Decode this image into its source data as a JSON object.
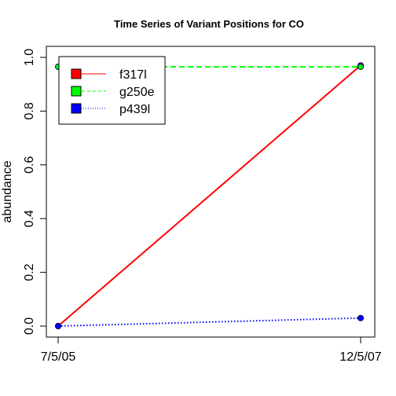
{
  "chart_data": {
    "type": "line",
    "title": "Time Series of Variant Positions for CO",
    "xlabel": "",
    "ylabel": "abundance",
    "categories": [
      "7/5/05",
      "12/5/07"
    ],
    "ylim": [
      0,
      1.0
    ],
    "yticks": [
      "0.0",
      "0.2",
      "0.4",
      "0.6",
      "0.8",
      "1.0"
    ],
    "grid": false,
    "legend_position": "top-left",
    "series": [
      {
        "name": "f317l",
        "values": [
          0.0,
          0.97
        ],
        "color": "#ff0000",
        "line_style": "solid"
      },
      {
        "name": "g250e",
        "values": [
          0.965,
          0.965
        ],
        "color": "#00ff00",
        "line_style": "dashed"
      },
      {
        "name": "p439l",
        "values": [
          0.0,
          0.03
        ],
        "color": "#0000ff",
        "line_style": "dotted"
      }
    ]
  }
}
